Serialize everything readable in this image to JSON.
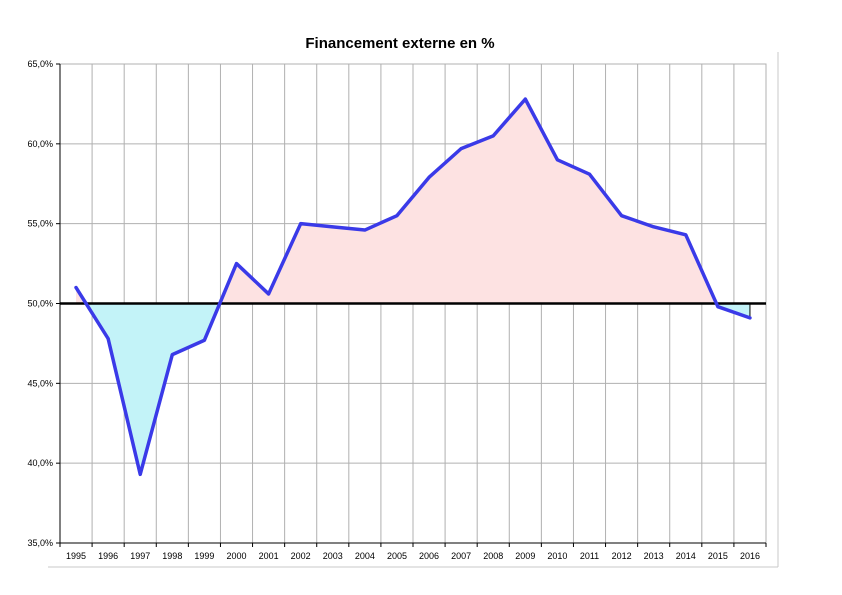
{
  "chart_data": {
    "type": "line",
    "title": "Financement externe en %",
    "xlabel": "",
    "ylabel": "",
    "categories": [
      "1995",
      "1996",
      "1997",
      "1998",
      "1999",
      "2000",
      "2001",
      "2002",
      "2003",
      "2004",
      "2005",
      "2006",
      "2007",
      "2008",
      "2009",
      "2010",
      "2011",
      "2012",
      "2013",
      "2014",
      "2015",
      "2016"
    ],
    "series": [
      {
        "values": [
          51.0,
          47.8,
          39.3,
          46.8,
          47.7,
          52.5,
          50.6,
          55.0,
          54.8,
          54.6,
          55.5,
          57.9,
          59.7,
          60.5,
          62.8,
          59.0,
          58.1,
          55.5,
          54.8,
          54.3,
          49.8,
          49.1
        ]
      }
    ],
    "reference_line": 50.0,
    "ylim": [
      35,
      65
    ],
    "yticks": [
      "35,0%",
      "40,0%",
      "45,0%",
      "50,0%",
      "55,0%",
      "60,0%",
      "65,0%"
    ],
    "grid": true,
    "colors": {
      "line": "#3a3ae8",
      "above_fill": "#fde2e2",
      "below_fill": "#c3f3f8",
      "reference": "#000000",
      "grid": "#b0b0b0"
    }
  }
}
